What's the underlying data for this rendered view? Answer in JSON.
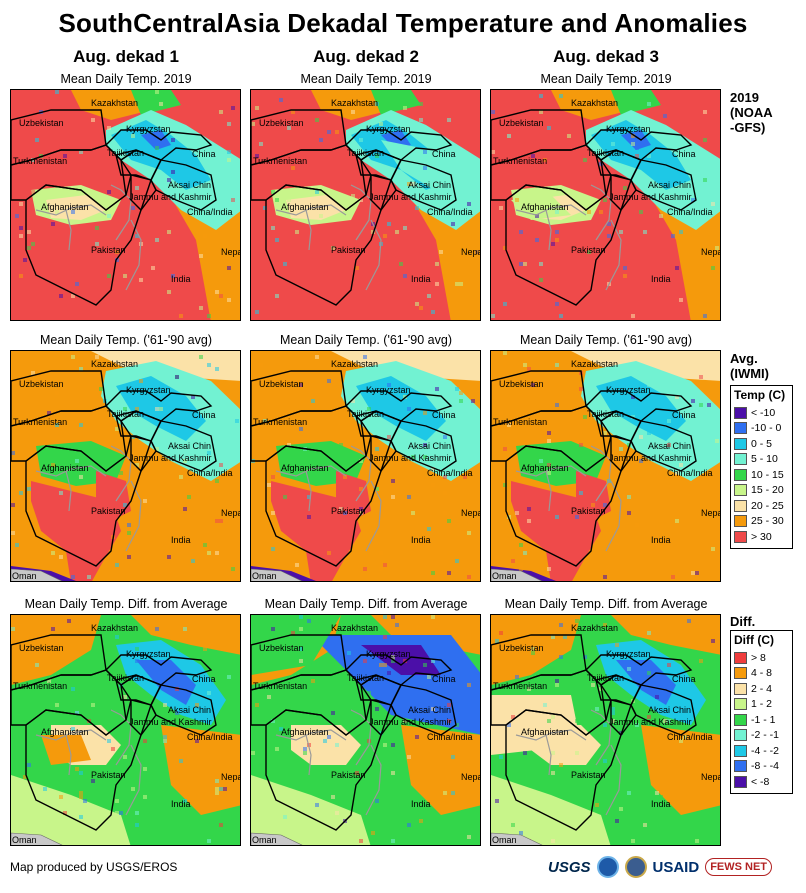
{
  "title": "SouthCentralAsia Dekadal Temperature and Anomalies",
  "columns": [
    "Aug. dekad 1",
    "Aug. dekad 2",
    "Aug. dekad 3"
  ],
  "rows": [
    {
      "key": "current",
      "subtitle": "Mean Daily Temp. 2019",
      "side_label_lines": [
        "2019",
        "(NOAA",
        "-GFS)"
      ]
    },
    {
      "key": "average",
      "subtitle": "Mean Daily Temp. ('61-'90 avg)",
      "side_label_lines": [
        "Avg.",
        "(IWMI)"
      ]
    },
    {
      "key": "diff",
      "subtitle": "Mean Daily Temp. Diff. from Average",
      "side_label_lines": [
        "Diff."
      ]
    }
  ],
  "map_labels": {
    "kazakhstan": "Kazakhstan",
    "uzbekistan": "Uzbekistan",
    "kyrgyzstan": "Kyrgyzstan",
    "tajikistan": "Tajikistan",
    "china": "China",
    "turkmenistan": "Turkmenistan",
    "aksai_chin": "Aksai Chin",
    "jammu_kashmir": "Jammu and Kashmir",
    "china_india": "China/India",
    "afghanistan": "Afghanistan",
    "pakistan": "Pakistan",
    "nepal": "Nepal",
    "india": "India",
    "oman": "Oman"
  },
  "temp_legend": {
    "title": "Temp (C)",
    "items": [
      {
        "label": "< -10",
        "color": "#4b0fa8"
      },
      {
        "label": "-10 - 0",
        "color": "#2f6ff0"
      },
      {
        "label": "0 - 5",
        "color": "#1ec8e6"
      },
      {
        "label": "5 - 10",
        "color": "#72f2d2"
      },
      {
        "label": "10 - 15",
        "color": "#33d64a"
      },
      {
        "label": "15 - 20",
        "color": "#c8f58a"
      },
      {
        "label": "20 - 25",
        "color": "#fbe2a8"
      },
      {
        "label": "25 - 30",
        "color": "#f59a0c"
      },
      {
        "label": "> 30",
        "color": "#ef4a4a"
      }
    ]
  },
  "diff_legend": {
    "title": "Diff (C)",
    "items": [
      {
        "label": "> 8",
        "color": "#ef3d3d"
      },
      {
        "label": "4 - 8",
        "color": "#f59a0c"
      },
      {
        "label": "2 - 4",
        "color": "#fbe2a8"
      },
      {
        "label": "1 - 2",
        "color": "#c8f58a"
      },
      {
        "label": "-1 - 1",
        "color": "#33d64a"
      },
      {
        "label": "-2 - -1",
        "color": "#72f2d2"
      },
      {
        "label": "-4 - -2",
        "color": "#1ec8e6"
      },
      {
        "label": "-8 - -4",
        "color": "#2f6ff0"
      },
      {
        "label": "< -8",
        "color": "#4b0fa8"
      }
    ]
  },
  "footer": "Map produced by USGS/EROS",
  "logos": {
    "usgs": "USGS",
    "usaid": "USAID",
    "fews": "FEWS NET"
  }
}
